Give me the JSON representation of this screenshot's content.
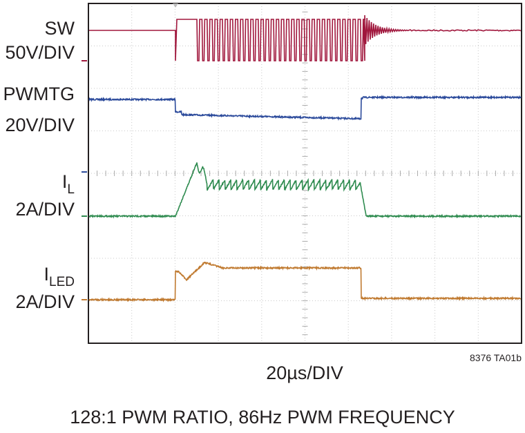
{
  "channels": [
    {
      "name": "SW",
      "scale": "50V/DIV"
    },
    {
      "name": "PWMTG",
      "scale": "20V/DIV"
    },
    {
      "name": {
        "main": "I",
        "sub": "L"
      },
      "scale": "2A/DIV"
    },
    {
      "name": {
        "main": "I",
        "sub": "LED"
      },
      "scale": "2A/DIV"
    }
  ],
  "code": "8376 TA01b",
  "timebase": "20µs/DIV",
  "caption": "128:1 PWM RATIO, 86Hz PWM FREQUENCY"
}
